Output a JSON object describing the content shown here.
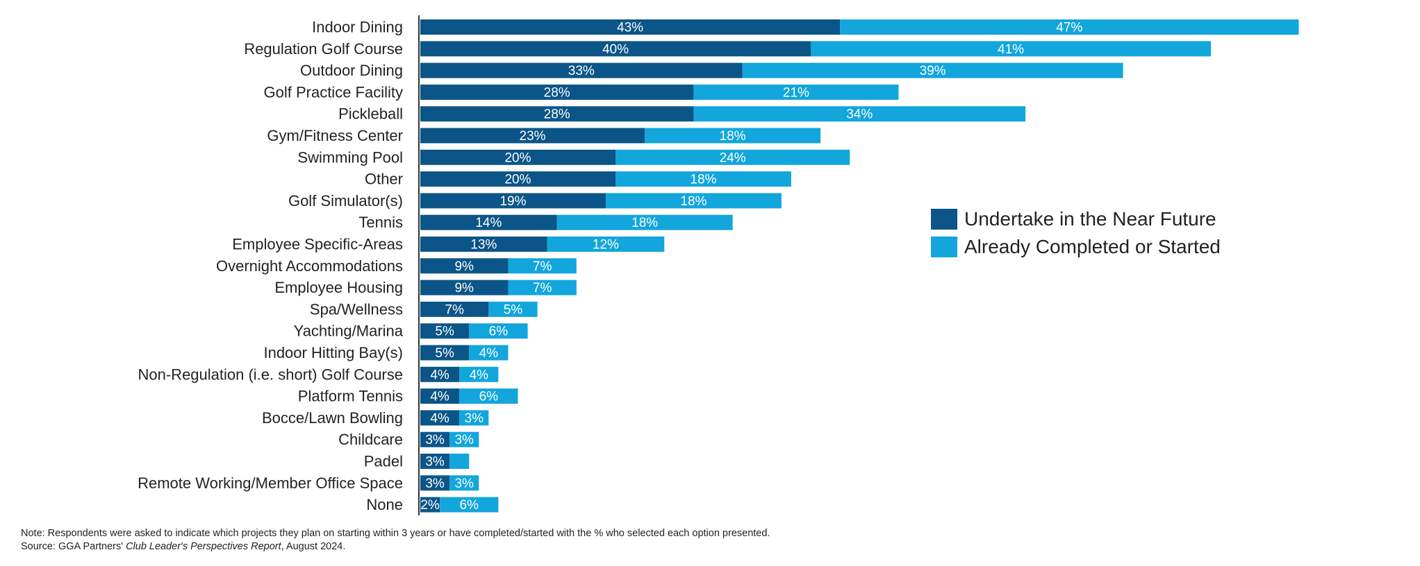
{
  "chart_data": {
    "type": "bar",
    "orientation": "horizontal",
    "stacked": true,
    "categories": [
      "Indoor Dining",
      "Regulation Golf Course",
      "Outdoor Dining",
      "Golf Practice Facility",
      "Pickleball",
      "Gym/Fitness Center",
      "Swimming Pool",
      "Other",
      "Golf Simulator(s)",
      "Tennis",
      "Employee Specific-Areas",
      "Overnight Accommodations",
      "Employee Housing",
      "Spa/Wellness",
      "Yachting/Marina",
      "Indoor Hitting Bay(s)",
      "Non-Regulation (i.e. short) Golf Course",
      "Platform Tennis",
      "Bocce/Lawn Bowling",
      "Childcare",
      "Padel",
      "Remote Working/Member Office Space",
      "None"
    ],
    "series": [
      {
        "name": "Undertake in the Near Future",
        "color": "#0b5588",
        "values": [
          43,
          40,
          33,
          28,
          28,
          23,
          20,
          20,
          19,
          14,
          13,
          9,
          9,
          7,
          5,
          5,
          4,
          4,
          4,
          3,
          3,
          3,
          2
        ],
        "labels": [
          "43%",
          "40%",
          "33%",
          "28%",
          "28%",
          "23%",
          "20%",
          "20%",
          "19%",
          "14%",
          "13%",
          "9%",
          "9%",
          "7%",
          "5%",
          "5%",
          "4%",
          "4%",
          "4%",
          "3%",
          "3%",
          "3%",
          "2%"
        ]
      },
      {
        "name": "Already Completed or Started",
        "color": "#12a6dc",
        "values": [
          47,
          41,
          39,
          21,
          34,
          18,
          24,
          18,
          18,
          18,
          12,
          7,
          7,
          5,
          6,
          4,
          4,
          6,
          3,
          3,
          2,
          3,
          6
        ],
        "labels": [
          "47%",
          "41%",
          "39%",
          "21%",
          "34%",
          "18%",
          "24%",
          "18%",
          "18%",
          "18%",
          "12%",
          "7%",
          "7%",
          "5%",
          "6%",
          "4%",
          "4%",
          "6%",
          "3%",
          "3%",
          "",
          "3%",
          "6%"
        ]
      }
    ],
    "xlim": [
      0,
      100
    ],
    "legend_position": "right",
    "grid": false
  },
  "notes": {
    "note": "Note: Respondents were asked to indicate which projects they plan on starting within 3 years or have completed/started with the % who selected each option presented.",
    "source_prefix": "Source: GGA Partners' ",
    "source_title": "Club Leader's Perspectives Report",
    "source_suffix": ", August 2024."
  }
}
